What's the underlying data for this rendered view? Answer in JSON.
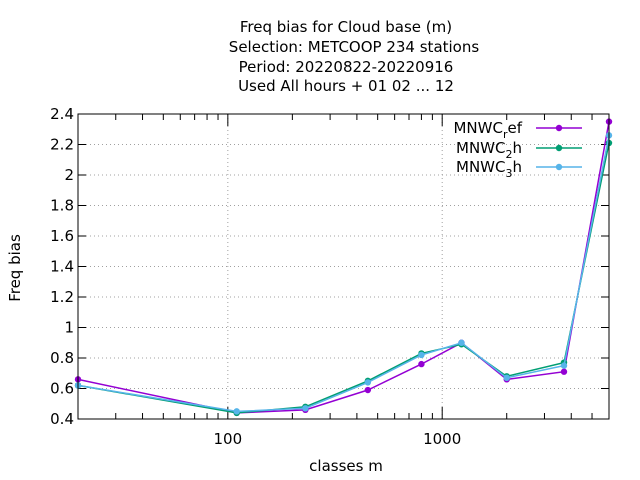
{
  "chart_data": {
    "type": "line",
    "title": [
      "Freq bias  for Cloud base (m)",
      "Selection: METCOOP    234 stations",
      "Period: 20220822-20220916",
      "Used  All hours  + 01 02 ... 12"
    ],
    "xlabel": "classes m",
    "ylabel": "Freq bias",
    "xscale": "log",
    "xlim": [
      20,
      6000
    ],
    "ylim": [
      0.4,
      2.4
    ],
    "xticks": [
      {
        "value": 100,
        "label": "100"
      },
      {
        "value": 1000,
        "label": "1000"
      }
    ],
    "yticks": [
      {
        "value": 0.4,
        "label": "0.4"
      },
      {
        "value": 0.6,
        "label": "0.6"
      },
      {
        "value": 0.8,
        "label": "0.8"
      },
      {
        "value": 1.0,
        "label": "1"
      },
      {
        "value": 1.2,
        "label": "1.2"
      },
      {
        "value": 1.4,
        "label": "1.4"
      },
      {
        "value": 1.6,
        "label": "1.6"
      },
      {
        "value": 1.8,
        "label": "1.8"
      },
      {
        "value": 2.0,
        "label": "2"
      },
      {
        "value": 2.2,
        "label": "2.2"
      },
      {
        "value": 2.4,
        "label": "2.4"
      }
    ],
    "grid": true,
    "legend_position": "top-right",
    "x": [
      20,
      110,
      230,
      450,
      800,
      1230,
      2000,
      3700,
      6000
    ],
    "series": [
      {
        "name": "MNWC",
        "sub": "r",
        "suffix": "ef",
        "color": "#9400d3",
        "values": [
          0.66,
          0.44,
          0.46,
          0.59,
          0.76,
          0.9,
          0.66,
          0.71,
          2.35
        ]
      },
      {
        "name": "MNWC",
        "sub": "2",
        "suffix": "h",
        "color": "#009e73",
        "values": [
          0.62,
          0.44,
          0.48,
          0.65,
          0.83,
          0.89,
          0.68,
          0.77,
          2.21
        ]
      },
      {
        "name": "MNWC",
        "sub": "3",
        "suffix": "h",
        "color": "#56b4e9",
        "values": [
          0.62,
          0.45,
          0.47,
          0.64,
          0.82,
          0.9,
          0.67,
          0.75,
          2.26
        ]
      }
    ]
  }
}
